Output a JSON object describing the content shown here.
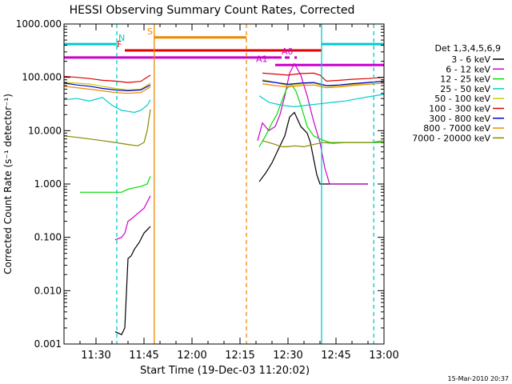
{
  "chart_data": {
    "type": "line",
    "title": "HESSI Observing Summary Count Rates, Corrected",
    "xlabel": "Start Time (19-Dec-03 11:20:02)",
    "ylabel": "Corrected Count Rate (s⁻¹ detector⁻¹)",
    "ylog": true,
    "ylim": [
      0.001,
      1000
    ],
    "xlim_minutes": [
      20.0,
      120.0
    ],
    "yticks": [
      {
        "v": 1000,
        "label": "1000.000"
      },
      {
        "v": 100,
        "label": "100.000"
      },
      {
        "v": 10,
        "label": "10.000"
      },
      {
        "v": 1,
        "label": "1.000"
      },
      {
        "v": 0.1,
        "label": "0.100"
      },
      {
        "v": 0.01,
        "label": "0.010"
      },
      {
        "v": 0.001,
        "label": "0.001"
      }
    ],
    "xticks": [
      {
        "m": 30,
        "label": "11:30"
      },
      {
        "m": 45,
        "label": "11:45"
      },
      {
        "m": 60,
        "label": "12:00"
      },
      {
        "m": 75,
        "label": "12:15"
      },
      {
        "m": 90,
        "label": "12:30"
      },
      {
        "m": 105,
        "label": "12:45"
      },
      {
        "m": 120,
        "label": "13:00"
      }
    ],
    "legend_title": "Det 1,3,4,5,6,9",
    "legend_position": "right",
    "series": [
      {
        "name": "3 - 6 keV",
        "color": "#000000",
        "x": [
          36.0,
          38.0,
          39.0,
          40.0,
          41.0,
          42.0,
          43.5,
          45.0,
          47.0,
          57.0,
          79.0,
          81.0,
          83.0,
          85.0,
          87.0,
          89.0,
          90.5,
          92.0,
          94.0,
          96.0,
          97.0,
          98.0,
          99.0,
          100.0,
          101.0,
          102.0,
          104.0,
          108.0,
          115.0
        ],
        "y": [
          0.0017,
          0.0015,
          0.002,
          0.04,
          0.045,
          0.06,
          0.08,
          0.12,
          0.16,
          null,
          null,
          1.1,
          1.6,
          2.5,
          4.5,
          8,
          18,
          22,
          12,
          9,
          6,
          3,
          1.5,
          1,
          1,
          1,
          1,
          1,
          1
        ]
      },
      {
        "name": "6 - 12 keV",
        "color": "#cc00cc",
        "x": [
          36.0,
          38.0,
          39.0,
          40.0,
          41.0,
          43.0,
          45.0,
          47.0,
          57.0,
          79.0,
          80.5,
          82.0,
          84.0,
          86.0,
          87.5,
          89.0,
          90.5,
          92.0,
          94.0,
          96.0,
          98.0,
          100.0,
          101.5,
          103.0,
          105.0,
          108.0,
          115.0
        ],
        "y": [
          0.09,
          0.1,
          0.12,
          0.2,
          0.22,
          0.28,
          0.35,
          0.6,
          null,
          null,
          6.5,
          14,
          10,
          12,
          20,
          45,
          120,
          180,
          110,
          45,
          15,
          6,
          2,
          1,
          1,
          1,
          1
        ]
      },
      {
        "name": "12 - 25 keV",
        "color": "#00dd00",
        "x": [
          25.0,
          30.0,
          35.0,
          38.0,
          40.0,
          42.0,
          44.0,
          46.0,
          47.0,
          57.0,
          79.0,
          81.0,
          83.0,
          85.0,
          86.5,
          88.0,
          89.5,
          91.0,
          92.5,
          94.0,
          96.0,
          98.0,
          100.0,
          103.0,
          106.0,
          110.0,
          115.0,
          120.0
        ],
        "y": [
          0.7,
          0.7,
          0.7,
          0.7,
          0.8,
          0.85,
          0.9,
          1.0,
          1.4,
          null,
          null,
          5,
          8,
          14,
          20,
          35,
          60,
          75,
          55,
          30,
          12,
          8,
          7,
          6,
          6,
          6,
          6,
          6
        ]
      },
      {
        "name": "25 - 50 keV",
        "color": "#00cccc",
        "x": [
          20.0,
          24.0,
          28.0,
          32.0,
          35.0,
          38.0,
          40.0,
          42.0,
          44.0,
          46.0,
          47.0,
          57.0,
          79.0,
          81.0,
          84.0,
          88.0,
          92.0,
          96.0,
          100.0,
          104.0,
          108.0,
          112.0,
          116.0,
          120.0
        ],
        "y": [
          38,
          40,
          36,
          42,
          30,
          24,
          23,
          22,
          24,
          30,
          38,
          null,
          null,
          45,
          34,
          30,
          28,
          30,
          32,
          34,
          36,
          40,
          44,
          48
        ]
      },
      {
        "name": "50 - 100 keV",
        "color": "#cccc00",
        "x": [
          20.0,
          24.0,
          28.0,
          32.0,
          36.0,
          40.0,
          44.0,
          47.0,
          57.0,
          79.0,
          82.0,
          86.0,
          90.0,
          94.0,
          98.0,
          100.0,
          103.0,
          107.0,
          112.0,
          116.0,
          120.0
        ],
        "y": [
          80,
          78,
          75,
          68,
          62,
          58,
          60,
          78,
          null,
          null,
          90,
          80,
          70,
          75,
          78,
          72,
          68,
          70,
          75,
          80,
          85
        ]
      },
      {
        "name": "100 - 300 keV",
        "color": "#dd0000",
        "x": [
          20.0,
          24.0,
          28.0,
          32.0,
          36.0,
          40.0,
          44.0,
          47.0,
          57.0,
          79.0,
          82.0,
          86.0,
          90.0,
          94.0,
          98.0,
          100.0,
          102.0,
          106.0,
          110.0,
          115.0,
          120.0
        ],
        "y": [
          105,
          100,
          95,
          88,
          85,
          80,
          84,
          110,
          null,
          null,
          120,
          115,
          110,
          118,
          120,
          110,
          85,
          88,
          92,
          95,
          100
        ]
      },
      {
        "name": "300 - 800 keV",
        "color": "#0000cc",
        "x": [
          20.0,
          24.0,
          28.0,
          32.0,
          36.0,
          40.0,
          44.0,
          47.0,
          57.0,
          79.0,
          82.0,
          86.0,
          90.0,
          94.0,
          98.0,
          102.0,
          106.0,
          110.0,
          115.0,
          120.0
        ],
        "y": [
          78,
          72,
          68,
          62,
          58,
          56,
          58,
          72,
          null,
          null,
          86,
          80,
          74,
          78,
          80,
          70,
          72,
          76,
          80,
          85
        ]
      },
      {
        "name": "800 - 7000 keV",
        "color": "#ee8800",
        "x": [
          20.0,
          24.0,
          28.0,
          32.0,
          36.0,
          40.0,
          44.0,
          47.0,
          57.0,
          79.0,
          82.0,
          86.0,
          90.0,
          94.0,
          98.0,
          102.0,
          106.0,
          110.0,
          115.0,
          120.0
        ],
        "y": [
          68,
          64,
          60,
          56,
          52,
          50,
          52,
          66,
          null,
          null,
          76,
          70,
          66,
          70,
          72,
          64,
          66,
          70,
          74,
          78
        ]
      },
      {
        "name": "7000 - 20000 keV",
        "color": "#888800",
        "x": [
          20.0,
          24.0,
          28.0,
          32.0,
          36.0,
          40.0,
          43.0,
          45.0,
          46.0,
          47.0,
          57.0,
          79.0,
          82.0,
          86.0,
          88.0,
          90.0,
          92.0,
          95.0,
          98.0,
          101.0,
          104.0,
          108.0,
          112.0,
          116.0,
          120.0
        ],
        "y": [
          8,
          7.5,
          7,
          6.5,
          6,
          5.5,
          5.2,
          6,
          10,
          25,
          null,
          null,
          6.5,
          5.5,
          5,
          5,
          5.2,
          5,
          5.5,
          6,
          5.8,
          6,
          6,
          6,
          6.5
        ]
      }
    ],
    "vertical_lines": [
      {
        "m": 36.5,
        "color": "#00cccc",
        "style": "dashed"
      },
      {
        "m": 48.2,
        "color": "#ee8800",
        "style": "solid"
      },
      {
        "m": 77.0,
        "color": "#ee8800",
        "style": "dashed"
      },
      {
        "m": 100.5,
        "color": "#00cccc",
        "style": "solid"
      },
      {
        "m": 116.8,
        "color": "#00cccc",
        "style": "dashed"
      }
    ],
    "flag_bars": [
      {
        "label": "N",
        "color": "#00cccc",
        "segments": [
          [
            20.0,
            36.5
          ],
          [
            100.5,
            120.0
          ]
        ],
        "level": 420,
        "label_at": 37.0
      },
      {
        "label": "S",
        "color": "#ee8800",
        "segments": [
          [
            48.2,
            77.0
          ]
        ],
        "level": 560,
        "label_at": 46.0
      },
      {
        "label": "F",
        "color": "#dd0000",
        "segments": [
          [
            39.0,
            100.5
          ]
        ],
        "level": 320,
        "label_at": 36.5
      },
      {
        "label": "",
        "color": "#cc00cc",
        "segments": [
          [
            20.0,
            88.0
          ],
          [
            89.0,
            90.5
          ],
          [
            92.0,
            92.8
          ]
        ],
        "level": 235,
        "label_at": 0
      },
      {
        "label": "A0",
        "color": "#cc00cc",
        "segments": [],
        "level": 235,
        "label_at": 88.0
      },
      {
        "label": "A1",
        "color": "#cc00cc",
        "segments": [
          [
            86.0,
            120.0
          ]
        ],
        "level": 170,
        "label_at": 80.0
      }
    ],
    "footer_date": "15-Mar-2010 20:37"
  }
}
